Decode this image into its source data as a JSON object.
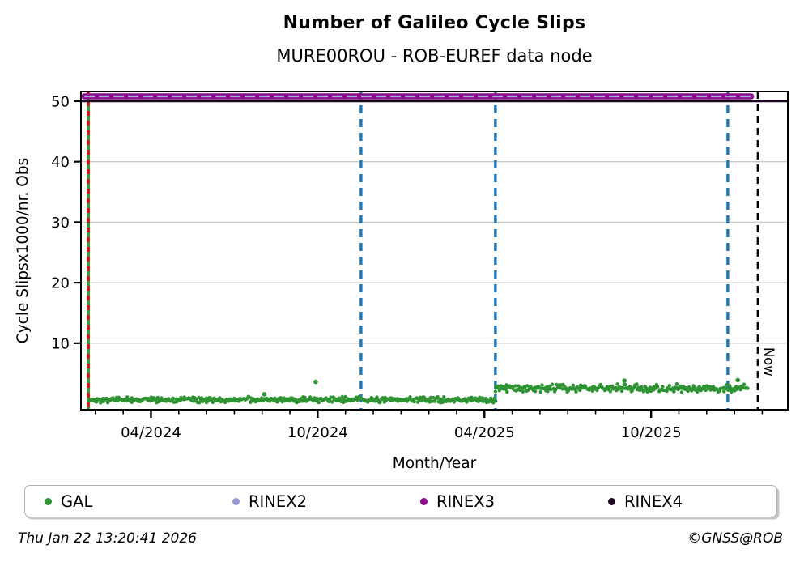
{
  "title": "Number of Galileo Cycle Slips",
  "subtitle": "MURE00ROU - ROB-EUREF data node",
  "footer": {
    "timestamp": "Thu Jan 22 13:20:41 2026",
    "credit": "©GNSS@ROB"
  },
  "legend": {
    "items": [
      {
        "label": "GAL",
        "color": "#2e9332",
        "marker": "dot-icon"
      },
      {
        "label": "RINEX2",
        "color": "#9a97d4",
        "marker": "dot-icon"
      },
      {
        "label": "RINEX3",
        "color": "#8e0c8e",
        "marker": "dot-icon"
      },
      {
        "label": "RINEX4",
        "color": "#1c0522",
        "marker": "dot-icon"
      }
    ]
  },
  "chart_data": {
    "type": "scatter",
    "title": "Number of Galileo Cycle Slips",
    "subtitle": "MURE00ROU - ROB-EUREF data node",
    "xlabel": "Month/Year",
    "ylabel": "Cycle Slipsx1000/nr. Obs",
    "xlim": [
      2024.04,
      2026.16
    ],
    "ylim": [
      -1,
      51.6
    ],
    "grid": "horizontal-only",
    "grid_color": "#c9c9c9",
    "axis_color": "#000000",
    "yticks": [
      10,
      20,
      30,
      40,
      50
    ],
    "xticks": [
      {
        "x": 2024.25,
        "label": "04/2024"
      },
      {
        "x": 2024.75,
        "label": "10/2024"
      },
      {
        "x": 2025.25,
        "label": "04/2025"
      },
      {
        "x": 2025.75,
        "label": "10/2025"
      }
    ],
    "minor_xticks": "monthly",
    "series": [
      {
        "name": "RINEX4",
        "type": "hline",
        "y": 50.0,
        "x_start": 2024.04,
        "x_end": 2026.16,
        "color": "#1c0522",
        "width": 2.6,
        "style": "solid"
      },
      {
        "name": "RINEX3",
        "type": "hline",
        "y": 50.8,
        "x_start": 2024.05,
        "x_end": 2026.05,
        "color": "#8e0c8e",
        "width": 7.5,
        "style": "solid"
      },
      {
        "name": "RINEX2",
        "type": "hline",
        "y": 50.8,
        "x_start": 2024.05,
        "x_end": 2026.05,
        "color": "#aaa7de",
        "width": 2.2,
        "style": "dashed",
        "dash": "13 5"
      },
      {
        "name": "GAL",
        "type": "scatter",
        "color": "#2e9332",
        "marker_radius": 2.2,
        "segments": [
          {
            "x_start": 2024.065,
            "x_end": 2025.283,
            "mean": 0.65,
            "spread": 0.55,
            "step": 0.0028
          },
          {
            "x_start": 2025.283,
            "x_end": 2026.04,
            "mean": 2.55,
            "spread": 0.75,
            "step": 0.0028
          }
        ],
        "outliers": [
          [
            2024.59,
            1.55
          ],
          [
            2024.744,
            3.6
          ],
          [
            2025.67,
            3.8
          ],
          [
            2026.01,
            3.9
          ]
        ]
      }
    ],
    "annotations": {
      "vlines": [
        {
          "x": 2024.062,
          "color": "#2e9332",
          "style": "solid",
          "width": 3.6,
          "overlay": {
            "color": "#dd1111",
            "dash": "6 6"
          }
        },
        {
          "x": 2024.88,
          "color": "#1f77b4",
          "style": "dashed",
          "dash": "10 7",
          "width": 3.4
        },
        {
          "x": 2025.283,
          "color": "#1f77b4",
          "style": "dashed",
          "dash": "10 7",
          "width": 3.4
        },
        {
          "x": 2025.98,
          "color": "#1f77b4",
          "style": "dashed",
          "dash": "10 7",
          "width": 3.4
        },
        {
          "x": 2026.07,
          "color": "#000000",
          "style": "dashed",
          "dash": "9 6",
          "width": 2.6,
          "label": "Now"
        }
      ]
    }
  }
}
